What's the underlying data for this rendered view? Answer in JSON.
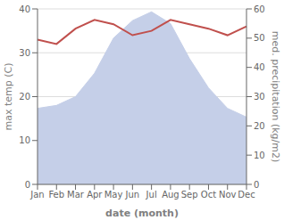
{
  "chart_data": {
    "type": "line",
    "xlabel": "date (month)",
    "ylabel": "max temp (C)",
    "y2label": "med. precipitation (kg/m2)",
    "categories": [
      "Jan",
      "Feb",
      "Mar",
      "Apr",
      "May",
      "Jun",
      "Jul",
      "Aug",
      "Sep",
      "Oct",
      "Nov",
      "Dec"
    ],
    "series": [
      {
        "type": "area",
        "color": "#c5cfe8",
        "axis": "y2",
        "values": [
          26,
          27,
          30,
          38,
          50,
          56,
          59,
          55,
          43,
          33,
          26,
          23
        ]
      },
      {
        "type": "line",
        "color": "#c0504d",
        "values": [
          33.0,
          32.0,
          35.5,
          37.5,
          36.5,
          34.0,
          35.0,
          37.5,
          36.5,
          35.5,
          34.0,
          36.0
        ]
      }
    ],
    "ylim": [
      0,
      40
    ],
    "yticks": [
      0,
      10,
      20,
      30,
      40
    ],
    "y2lim": [
      0,
      60
    ],
    "y2ticks": [
      0,
      10,
      20,
      30,
      40,
      50,
      60
    ],
    "grid": true
  }
}
